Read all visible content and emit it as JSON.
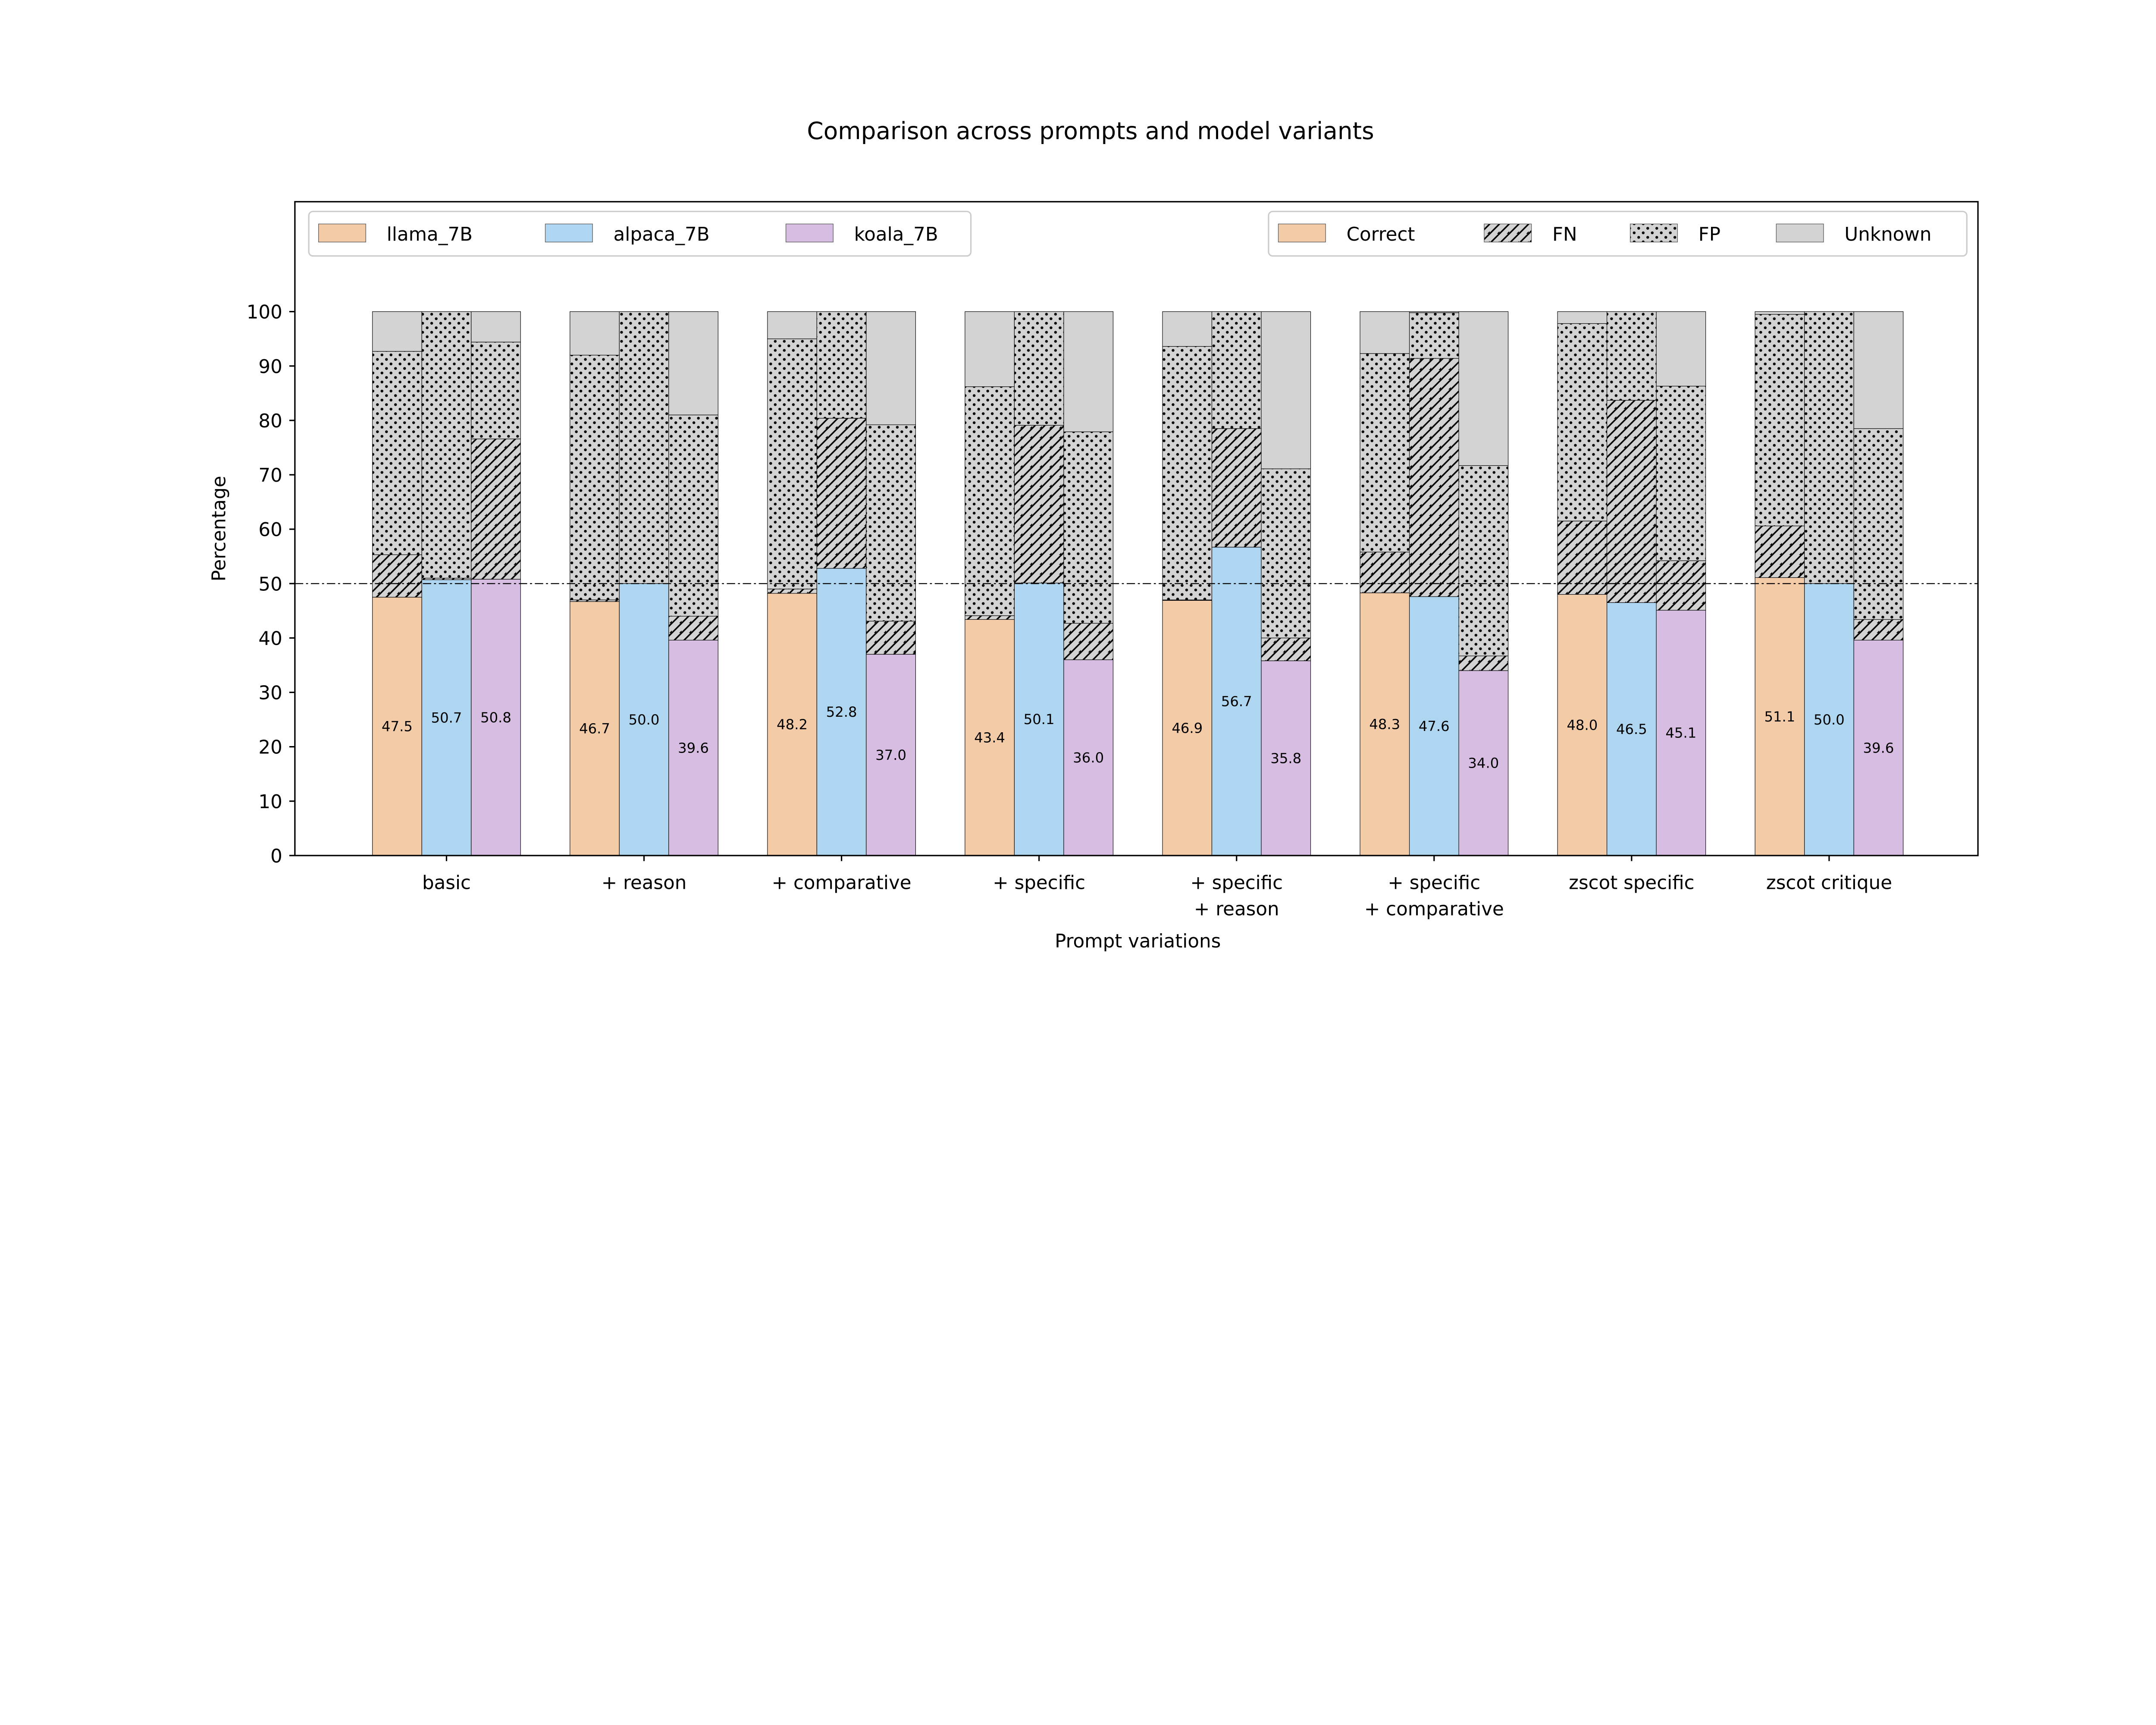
{
  "chart_data": {
    "type": "bar",
    "stacked": true,
    "title": "Comparison across prompts and model variants",
    "xlabel": "Prompt variations",
    "ylabel": "Percentage",
    "ylim": [
      0,
      110
    ],
    "yticks": [
      "0",
      "10",
      "20",
      "30",
      "40",
      "50",
      "60",
      "70",
      "80",
      "90",
      "100"
    ],
    "reference_line": 50,
    "categories": [
      "basic",
      "+ reason",
      "+ comparative",
      "+ specific",
      "+ specific\n+ reason",
      "+ specific\n+ comparative",
      "zscot specific",
      "zscot critique"
    ],
    "models": [
      {
        "name": "llama_7B",
        "color": "#F3CBA7"
      },
      {
        "name": "alpaca_7B",
        "color": "#AED6F1"
      },
      {
        "name": "koala_7B",
        "color": "#D7BDE2"
      }
    ],
    "outcomes": [
      {
        "name": "Correct",
        "pattern": "model-color"
      },
      {
        "name": "FN",
        "pattern": "hatch",
        "color": "#D3D3D3"
      },
      {
        "name": "FP",
        "pattern": "dots",
        "color": "#D3D3D3"
      },
      {
        "name": "Unknown",
        "pattern": "solid",
        "color": "#D3D3D3"
      }
    ],
    "series": [
      {
        "name": "llama_7B",
        "Correct": [
          47.5,
          46.7,
          48.2,
          43.4,
          46.9,
          48.3,
          48.0,
          51.1
        ],
        "FN": [
          7.8,
          0.3,
          0.8,
          0.7,
          0.1,
          7.5,
          13.5,
          9.5
        ],
        "FP": [
          37.4,
          45.0,
          46.0,
          42.1,
          46.6,
          36.5,
          36.3,
          38.9
        ],
        "Unknown": [
          7.3,
          8.0,
          5.0,
          13.8,
          6.4,
          7.7,
          2.2,
          0.5
        ]
      },
      {
        "name": "alpaca_7B",
        "Correct": [
          50.7,
          50.0,
          52.8,
          50.1,
          56.7,
          47.6,
          46.5,
          50.0
        ],
        "FN": [
          0.3,
          0.0,
          27.6,
          29.0,
          21.8,
          43.8,
          37.2,
          0.0
        ],
        "FP": [
          49.0,
          50.0,
          19.6,
          20.9,
          21.5,
          8.4,
          16.3,
          50.0
        ],
        "Unknown": [
          0.0,
          0.0,
          0.0,
          0.0,
          0.0,
          0.2,
          0.0,
          0.0
        ]
      },
      {
        "name": "koala_7B",
        "Correct": [
          50.8,
          39.6,
          37.0,
          36.0,
          35.8,
          34.0,
          45.1,
          39.6
        ],
        "FN": [
          25.8,
          4.4,
          6.1,
          6.7,
          4.2,
          2.7,
          9.1,
          3.8
        ],
        "FP": [
          17.8,
          37.0,
          36.1,
          35.2,
          31.1,
          35.0,
          32.1,
          35.1
        ],
        "Unknown": [
          5.6,
          19.0,
          20.8,
          22.1,
          28.9,
          28.3,
          13.7,
          21.5
        ]
      }
    ],
    "legend_models_position": "top-left",
    "legend_outcomes_position": "top-right",
    "grid": false
  }
}
